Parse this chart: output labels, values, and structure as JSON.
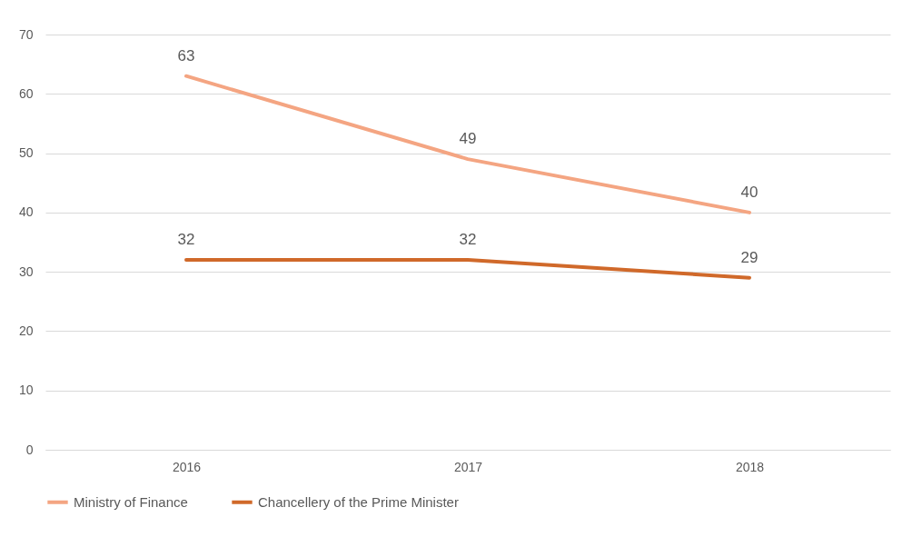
{
  "chart_data": {
    "type": "line",
    "categories": [
      "2016",
      "2017",
      "2018"
    ],
    "series": [
      {
        "name": "Ministry of Finance",
        "color": "#f4a582",
        "values": [
          63,
          49,
          40
        ]
      },
      {
        "name": "Chancellery of the Prime Minister",
        "color": "#d0692a",
        "values": [
          32,
          32,
          29
        ]
      }
    ],
    "ylim": [
      0,
      70
    ],
    "yticks": [
      0,
      10,
      20,
      30,
      40,
      50,
      60,
      70
    ],
    "grid": "y",
    "legend": "bottom",
    "data_labels": true
  }
}
